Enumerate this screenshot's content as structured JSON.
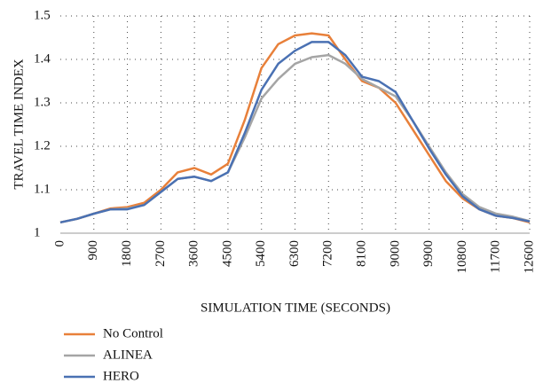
{
  "chart_data": {
    "type": "line",
    "x_label": "SIMULATION TIME (SECONDS)",
    "y_label": "TRAVEL TIME INDEX",
    "x": [
      0,
      450,
      900,
      1350,
      1800,
      2250,
      2700,
      3150,
      3600,
      4050,
      4500,
      4950,
      5400,
      5850,
      6300,
      6750,
      7200,
      7650,
      8100,
      8550,
      9000,
      9450,
      9900,
      10350,
      10800,
      11250,
      11700,
      12150,
      12600
    ],
    "series": [
      {
        "name": "No Control",
        "color": "#e8803a",
        "values": [
          1.025,
          1.033,
          1.045,
          1.057,
          1.06,
          1.07,
          1.1,
          1.14,
          1.15,
          1.135,
          1.16,
          1.26,
          1.38,
          1.435,
          1.455,
          1.46,
          1.455,
          1.4,
          1.35,
          1.335,
          1.3,
          1.24,
          1.18,
          1.12,
          1.08,
          1.055,
          1.04,
          1.035,
          1.025
        ]
      },
      {
        "name": "ALINEA",
        "color": "#a5a5a5",
        "values": [
          1.025,
          1.033,
          1.045,
          1.055,
          1.057,
          1.065,
          1.095,
          1.125,
          1.13,
          1.12,
          1.14,
          1.22,
          1.31,
          1.355,
          1.39,
          1.405,
          1.41,
          1.39,
          1.355,
          1.335,
          1.315,
          1.26,
          1.2,
          1.14,
          1.09,
          1.06,
          1.045,
          1.038,
          1.028
        ]
      },
      {
        "name": "HERO",
        "color": "#4a71b3",
        "values": [
          1.025,
          1.033,
          1.045,
          1.055,
          1.055,
          1.065,
          1.095,
          1.125,
          1.13,
          1.12,
          1.14,
          1.23,
          1.33,
          1.39,
          1.42,
          1.44,
          1.44,
          1.41,
          1.36,
          1.35,
          1.325,
          1.26,
          1.195,
          1.135,
          1.085,
          1.055,
          1.04,
          1.035,
          1.027
        ]
      }
    ],
    "xlim": [
      0,
      12600
    ],
    "xticks": [
      0,
      900,
      1800,
      2700,
      3600,
      4500,
      5400,
      6300,
      7200,
      8100,
      9000,
      9900,
      10800,
      11700,
      12600
    ],
    "ylim": [
      1,
      1.5
    ],
    "yticks": [
      1,
      1.1,
      1.2,
      1.3,
      1.4,
      1.5
    ],
    "grid": true
  }
}
